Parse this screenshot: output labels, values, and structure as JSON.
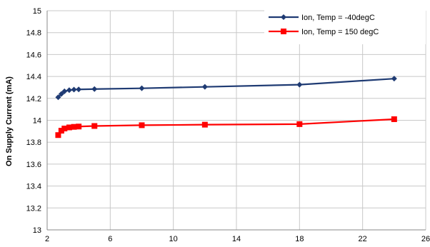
{
  "chart_data": {
    "type": "line",
    "title": "",
    "xlabel": "",
    "ylabel": "On Supply Current (mA)",
    "xlim": [
      2,
      26
    ],
    "ylim": [
      13,
      15
    ],
    "x_ticks": [
      2,
      6,
      10,
      14,
      18,
      22,
      26
    ],
    "y_ticks": [
      13,
      13.2,
      13.4,
      13.6,
      13.8,
      14,
      14.2,
      14.4,
      14.6,
      14.8,
      15
    ],
    "x_tick_labels": [
      "2",
      "6",
      "10",
      "14",
      "18",
      "22",
      "26"
    ],
    "y_tick_labels": [
      "13",
      "13.2",
      "13.4",
      "13.6",
      "13.8",
      "14",
      "14.2",
      "14.4",
      "14.6",
      "14.8",
      "15"
    ],
    "grid": true,
    "legend_position": "top-right",
    "series": [
      {
        "name": "Ion, Temp = -40degC",
        "color": "#1f3b73",
        "marker": "diamond",
        "x": [
          2.7,
          2.9,
          3.1,
          3.4,
          3.7,
          4.0,
          5.0,
          8.0,
          12.0,
          18.0,
          24.0
        ],
        "y": [
          14.21,
          14.24,
          14.265,
          14.275,
          14.28,
          14.282,
          14.285,
          14.292,
          14.305,
          14.325,
          14.38
        ]
      },
      {
        "name": "Ion, Temp = 150 degC",
        "color": "#ff0000",
        "marker": "square",
        "x": [
          2.7,
          2.9,
          3.1,
          3.4,
          3.7,
          4.0,
          5.0,
          8.0,
          12.0,
          18.0,
          24.0
        ],
        "y": [
          13.865,
          13.905,
          13.925,
          13.935,
          13.94,
          13.943,
          13.948,
          13.955,
          13.96,
          13.965,
          14.01
        ]
      }
    ]
  }
}
